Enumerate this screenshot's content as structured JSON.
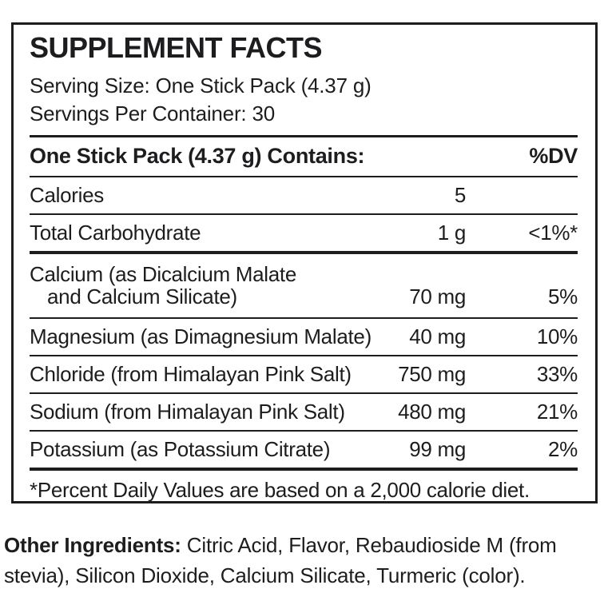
{
  "panel": {
    "title": "SUPPLEMENT FACTS",
    "serving_size": "Serving Size: One Stick Pack (4.37 g)",
    "servings_per_container": "Servings Per Container: 30",
    "header": {
      "contains": "One Stick Pack (4.37 g) Contains:",
      "dv": "%DV"
    },
    "rows": [
      {
        "name_lines": [
          "Calories"
        ],
        "amount": "5",
        "dv": ""
      },
      {
        "name_lines": [
          "Total Carbohydrate"
        ],
        "amount": "1 g",
        "dv": "<1%*"
      },
      {
        "name_lines": [
          "Calcium (as Dicalcium Malate",
          "and Calcium Silicate)"
        ],
        "amount": "70 mg",
        "dv": "5%"
      },
      {
        "name_lines": [
          "Magnesium (as Dimagnesium Malate)"
        ],
        "amount": "40 mg",
        "dv": "10%"
      },
      {
        "name_lines": [
          "Chloride (from Himalayan Pink Salt)"
        ],
        "amount": "750 mg",
        "dv": "33%"
      },
      {
        "name_lines": [
          "Sodium (from Himalayan Pink Salt)"
        ],
        "amount": "480 mg",
        "dv": "21%"
      },
      {
        "name_lines": [
          "Potassium (as Potassium Citrate)"
        ],
        "amount": "99 mg",
        "dv": "2%"
      }
    ],
    "footnote": "*Percent Daily Values are based on a 2,000 calorie diet."
  },
  "other_ingredients": {
    "label": "Other Ingredients:",
    "text": " Citric Acid, Flavor, Rebaudioside M (from stevia), Silicon Dioxide, Calcium Silicate, Turmeric (color)."
  },
  "colors": {
    "text": "#1d1d1f",
    "border": "#1d1d1f",
    "background": "#ffffff"
  }
}
